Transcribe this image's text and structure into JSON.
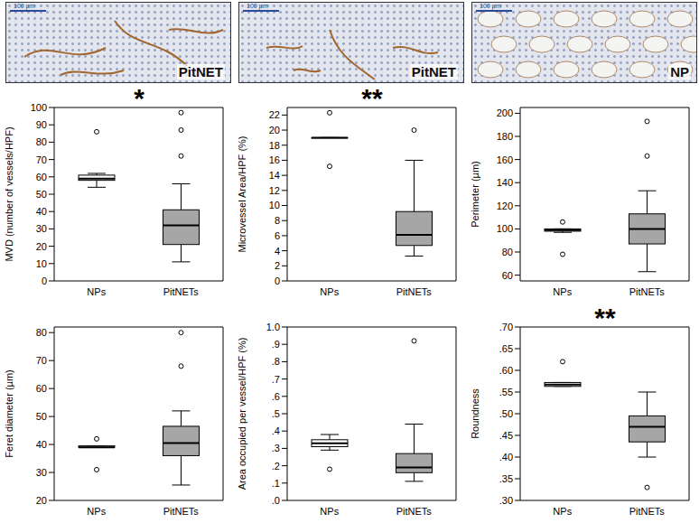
{
  "images": [
    {
      "label": "PitNET",
      "scale_bar": "100 µm"
    },
    {
      "label": "PitNET",
      "scale_bar": "100 µm"
    },
    {
      "label": "NP",
      "scale_bar": "100 µm"
    }
  ],
  "chart_data": [
    {
      "type": "boxplot",
      "y_label": "MVD (number of vessels/HPF)",
      "annotation": "*",
      "categories": [
        "NPs",
        "PitNETs"
      ],
      "boxes": [
        {
          "name": "NPs",
          "color": "#ffffff",
          "min": 54,
          "q1": 58,
          "median": 59,
          "q3": 61,
          "max": 62,
          "outliers": [
            86
          ]
        },
        {
          "name": "PitNETs",
          "color": "#a6a6a6",
          "min": 11,
          "q1": 21,
          "median": 32,
          "q3": 41,
          "max": 56,
          "outliers": [
            72,
            87,
            97
          ]
        }
      ],
      "ylim": [
        0,
        100
      ],
      "yticks": [
        0,
        10,
        20,
        30,
        40,
        50,
        60,
        70,
        80,
        90,
        100
      ]
    },
    {
      "type": "boxplot",
      "y_label": "Microvessel Area/HPF (%)",
      "annotation": "**",
      "categories": [
        "NPs",
        "PitNETs"
      ],
      "boxes": [
        {
          "name": "NPs",
          "color": "#ffffff",
          "min": 19,
          "q1": 19,
          "median": 19,
          "q3": 19,
          "max": 19,
          "outliers": [
            22.3,
            15.2
          ]
        },
        {
          "name": "PitNETs",
          "color": "#a6a6a6",
          "min": 3.3,
          "q1": 4.7,
          "median": 6.1,
          "q3": 9.2,
          "max": 16,
          "outliers": [
            20
          ]
        }
      ],
      "ylim": [
        0,
        23
      ],
      "yticks": [
        0,
        2,
        4,
        6,
        8,
        10,
        12,
        14,
        16,
        18,
        20,
        22
      ]
    },
    {
      "type": "boxplot",
      "y_label": "Perimeter (µm)",
      "categories": [
        "NPs",
        "PitNETs"
      ],
      "boxes": [
        {
          "name": "NPs",
          "color": "#ffffff",
          "min": 97,
          "q1": 98,
          "median": 99,
          "q3": 100,
          "max": 100,
          "outliers": [
            106,
            78
          ]
        },
        {
          "name": "PitNETs",
          "color": "#a6a6a6",
          "min": 63,
          "q1": 87,
          "median": 100,
          "q3": 113,
          "max": 133,
          "outliers": [
            163,
            193
          ]
        }
      ],
      "ylim": [
        55,
        205
      ],
      "yticks": [
        60,
        80,
        100,
        120,
        140,
        160,
        180,
        200
      ]
    },
    {
      "type": "boxplot",
      "y_label": "Feret diameter (µm)",
      "categories": [
        "NPs",
        "PitNETs"
      ],
      "boxes": [
        {
          "name": "NPs",
          "color": "#ffffff",
          "min": 39,
          "q1": 39,
          "median": 39,
          "q3": 39.5,
          "max": 39.5,
          "outliers": [
            42,
            31
          ]
        },
        {
          "name": "PitNETs",
          "color": "#a6a6a6",
          "min": 25.5,
          "q1": 36,
          "median": 40.5,
          "q3": 46.5,
          "max": 52,
          "outliers": [
            68,
            80
          ]
        }
      ],
      "ylim": [
        20,
        82
      ],
      "yticks": [
        20,
        30,
        40,
        50,
        60,
        70,
        80
      ]
    },
    {
      "type": "boxplot",
      "y_label": "Area occupied per vessel/HPF (%)",
      "categories": [
        "NPs",
        "PitNETs"
      ],
      "boxes": [
        {
          "name": "NPs",
          "color": "#ffffff",
          "min": 0.29,
          "q1": 0.31,
          "median": 0.33,
          "q3": 0.35,
          "max": 0.38,
          "outliers": [
            0.18
          ]
        },
        {
          "name": "PitNETs",
          "color": "#a6a6a6",
          "min": 0.11,
          "q1": 0.16,
          "median": 0.19,
          "q3": 0.27,
          "max": 0.44,
          "outliers": [
            0.92
          ]
        }
      ],
      "ylim": [
        0,
        1.0
      ],
      "yticks": [
        {
          "value": 0,
          "label": ".0"
        },
        {
          "value": 0.1,
          "label": ".1"
        },
        {
          "value": 0.2,
          "label": ".2"
        },
        {
          "value": 0.3,
          "label": ".3"
        },
        {
          "value": 0.4,
          "label": ".4"
        },
        {
          "value": 0.5,
          "label": ".5"
        },
        {
          "value": 0.6,
          "label": ".6"
        },
        {
          "value": 0.7,
          "label": ".7"
        },
        {
          "value": 0.8,
          "label": ".8"
        },
        {
          "value": 0.9,
          "label": ".9"
        },
        {
          "value": 1.0,
          "label": "1.0"
        }
      ]
    },
    {
      "type": "boxplot",
      "y_label": "Roundness",
      "annotation": "**",
      "categories": [
        "NPs",
        "PitNETs"
      ],
      "boxes": [
        {
          "name": "NPs",
          "color": "#ffffff",
          "min": 0.563,
          "q1": 0.563,
          "median": 0.567,
          "q3": 0.572,
          "max": 0.572,
          "outliers": [
            0.62
          ]
        },
        {
          "name": "PitNETs",
          "color": "#a6a6a6",
          "min": 0.4,
          "q1": 0.435,
          "median": 0.47,
          "q3": 0.495,
          "max": 0.55,
          "outliers": [
            0.33
          ]
        }
      ],
      "ylim": [
        0.3,
        0.7
      ],
      "yticks": [
        {
          "value": 0.3,
          "label": ".30"
        },
        {
          "value": 0.35,
          "label": ".35"
        },
        {
          "value": 0.4,
          "label": ".40"
        },
        {
          "value": 0.45,
          "label": ".45"
        },
        {
          "value": 0.5,
          "label": ".50"
        },
        {
          "value": 0.55,
          "label": ".55"
        },
        {
          "value": 0.6,
          "label": ".60"
        },
        {
          "value": 0.65,
          "label": ".65"
        },
        {
          "value": 0.7,
          "label": ".70"
        }
      ]
    }
  ]
}
